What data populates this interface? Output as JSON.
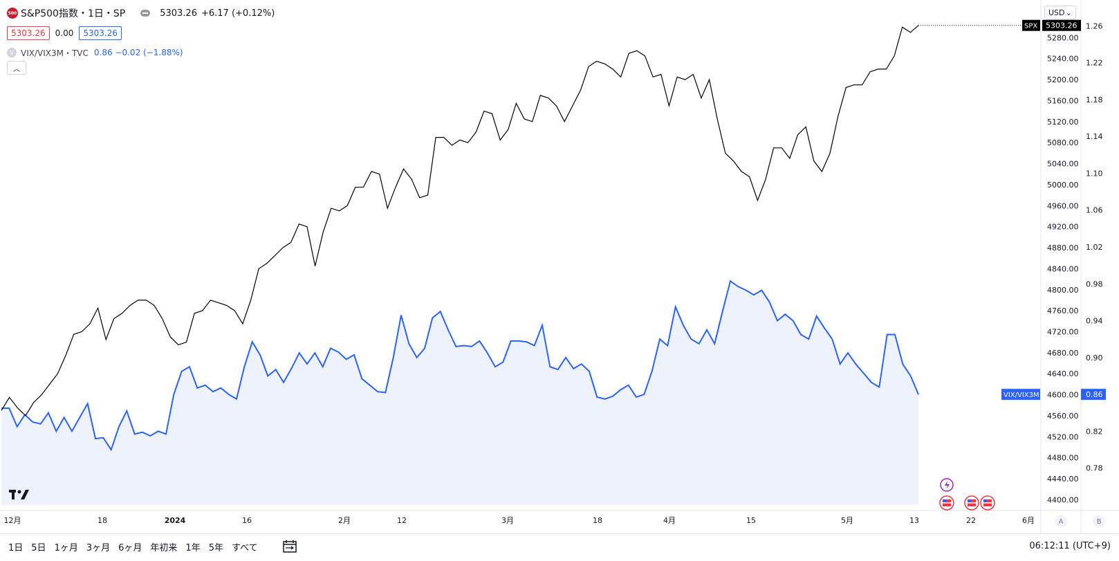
{
  "legend": {
    "symbol_badge": "500",
    "title": "S&P500指数・1日・SP",
    "last": "5303.26",
    "change": "+6.17 (+0.12%)",
    "bid": "5303.26",
    "spread": "0.00",
    "ask": "5303.26",
    "overlay_badge": "V",
    "overlay_name": "VIX/VIX3M・TVC",
    "overlay_values": "0.86  −0.02 (−1.88%)"
  },
  "currency": {
    "label": "USD",
    "icon": "chevron-down-icon"
  },
  "collapse_icon": "chevron-up-icon",
  "axis_buttons": {
    "left": "A",
    "right": "B"
  },
  "bottom_bar": {
    "ranges": [
      "1日",
      "5日",
      "1ヶ月",
      "3ヶ月",
      "6ヶ月",
      "年初来",
      "1年",
      "5年",
      "すべて"
    ],
    "calendar_icon": "calendar-icon",
    "clock": "06:12:11 (UTC+9)"
  },
  "colors": {
    "spx": "#000000",
    "vix": "#2962ff",
    "vix_fill": "#eef2fc",
    "label_bg": "#000000",
    "up": "#f23645"
  },
  "chart_data": {
    "type": "line",
    "x_tick_labels": [
      "12月",
      "18",
      "2024",
      "16",
      "2月",
      "12",
      "3月",
      "18",
      "4月",
      "15",
      "5月",
      "13",
      "22",
      "6月"
    ],
    "y_left_ticks": [
      "5280.00",
      "5240.00",
      "5200.00",
      "5160.00",
      "5120.00",
      "5080.00",
      "5040.00",
      "5000.00",
      "4960.00",
      "4920.00",
      "4880.00",
      "4840.00",
      "4800.00",
      "4760.00",
      "4720.00",
      "4680.00",
      "4640.00",
      "4600.00",
      "4560.00",
      "4520.00",
      "4480.00",
      "4440.00",
      "4400.00"
    ],
    "y_right_ticks": [
      "1.26",
      "1.22",
      "1.18",
      "1.14",
      "1.10",
      "1.06",
      "1.02",
      "0.98",
      "0.94",
      "0.90",
      "0.86",
      "0.82",
      "0.78"
    ],
    "ylim_left": [
      4390,
      5320
    ],
    "ylim_right": [
      0.74,
      1.27
    ],
    "series": [
      {
        "name": "SPX",
        "axis": "left",
        "last_label": "5303.26",
        "values": [
          4570,
          4595,
          4575,
          4560,
          4585,
          4600,
          4620,
          4640,
          4675,
          4715,
          4720,
          4735,
          4765,
          4705,
          4745,
          4755,
          4770,
          4780,
          4780,
          4770,
          4745,
          4710,
          4695,
          4700,
          4755,
          4760,
          4780,
          4775,
          4770,
          4760,
          4735,
          4780,
          4840,
          4850,
          4865,
          4880,
          4890,
          4925,
          4920,
          4845,
          4910,
          4955,
          4950,
          4960,
          4995,
          4995,
          5025,
          5020,
          4955,
          4995,
          5030,
          5010,
          4975,
          4980,
          5090,
          5090,
          5075,
          5085,
          5080,
          5100,
          5140,
          5135,
          5085,
          5105,
          5155,
          5125,
          5120,
          5170,
          5165,
          5150,
          5120,
          5150,
          5180,
          5225,
          5235,
          5230,
          5220,
          5205,
          5250,
          5255,
          5245,
          5205,
          5210,
          5150,
          5205,
          5200,
          5210,
          5165,
          5200,
          5125,
          5060,
          5045,
          5025,
          5015,
          4970,
          5010,
          5070,
          5070,
          5050,
          5095,
          5110,
          5045,
          5025,
          5060,
          5130,
          5185,
          5190,
          5190,
          5215,
          5220,
          5220,
          5245,
          5300,
          5290,
          5303.26
        ]
      },
      {
        "name": "VIX/VIX3M",
        "axis": "right",
        "last_label": "0.86",
        "values": [
          0.845,
          0.845,
          0.825,
          0.838,
          0.83,
          0.828,
          0.84,
          0.82,
          0.835,
          0.82,
          0.835,
          0.85,
          0.812,
          0.813,
          0.8,
          0.825,
          0.842,
          0.817,
          0.819,
          0.815,
          0.82,
          0.817,
          0.86,
          0.885,
          0.89,
          0.867,
          0.87,
          0.863,
          0.867,
          0.86,
          0.855,
          0.89,
          0.917,
          0.903,
          0.88,
          0.887,
          0.873,
          0.888,
          0.905,
          0.893,
          0.905,
          0.89,
          0.91,
          0.906,
          0.898,
          0.903,
          0.877,
          0.87,
          0.863,
          0.862,
          0.9,
          0.946,
          0.915,
          0.9,
          0.91,
          0.943,
          0.95,
          0.93,
          0.912,
          0.913,
          0.912,
          0.918,
          0.905,
          0.89,
          0.895,
          0.918,
          0.918,
          0.917,
          0.913,
          0.935,
          0.89,
          0.887,
          0.9,
          0.888,
          0.893,
          0.885,
          0.857,
          0.855,
          0.858,
          0.865,
          0.87,
          0.857,
          0.86,
          0.885,
          0.92,
          0.913,
          0.955,
          0.935,
          0.92,
          0.915,
          0.93,
          0.915,
          0.95,
          0.983,
          0.977,
          0.973,
          0.968,
          0.973,
          0.96,
          0.94,
          0.947,
          0.94,
          0.925,
          0.92,
          0.945,
          0.932,
          0.92,
          0.893,
          0.905,
          0.893,
          0.883,
          0.873,
          0.868,
          0.925,
          0.925,
          0.893,
          0.88,
          0.86
        ]
      }
    ],
    "annotations": {
      "spx_axis_tag": "SPX",
      "vix_axis_tag": "VIX/VIX3M"
    },
    "grid": false,
    "legend": "top-left"
  }
}
